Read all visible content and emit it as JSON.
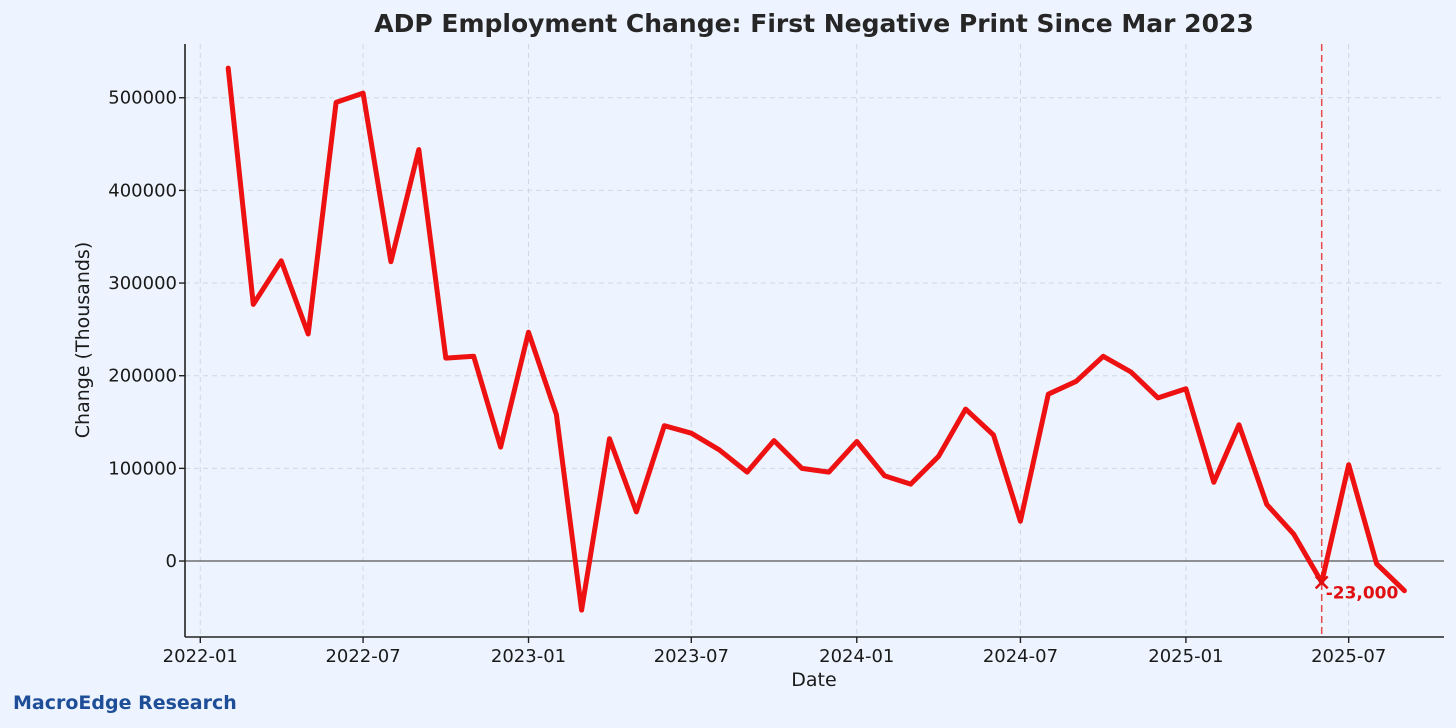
{
  "brand": "MacroEdge Research",
  "colors": {
    "background": "#edf4ff",
    "line": "#ee1111",
    "grid": "#c9d3e3",
    "annotation": "#e01010"
  },
  "chart_data": {
    "type": "line",
    "title": "ADP Employment Change: First Negative Print Since Mar 2023",
    "xlabel": "Date",
    "ylabel": "Change (Thousands)",
    "x_ticks": [
      "2022-01",
      "2022-07",
      "2023-01",
      "2023-07",
      "2024-01",
      "2024-07",
      "2025-01",
      "2025-07"
    ],
    "y_ticks": [
      0,
      100000,
      200000,
      300000,
      400000,
      500000
    ],
    "xlim": [
      "2021-12-15",
      "2025-10-15"
    ],
    "ylim": [
      -82000,
      558000
    ],
    "grid": true,
    "zero_line": true,
    "series": [
      {
        "x": [
          "2022-02",
          "2022-03",
          "2022-04",
          "2022-05",
          "2022-06",
          "2022-07",
          "2022-08",
          "2022-09",
          "2022-10",
          "2022-11",
          "2022-12",
          "2023-01",
          "2023-02",
          "2023-03",
          "2023-04",
          "2023-05",
          "2023-06",
          "2023-07",
          "2023-08",
          "2023-09",
          "2023-10",
          "2023-11",
          "2023-12",
          "2024-01",
          "2024-02",
          "2024-03",
          "2024-04",
          "2024-05",
          "2024-06",
          "2024-07",
          "2024-08",
          "2024-09",
          "2024-10",
          "2024-11",
          "2024-12",
          "2025-01",
          "2025-02",
          "2025-03",
          "2025-04",
          "2025-05",
          "2025-06",
          "2025-07",
          "2025-08",
          "2025-09"
        ],
        "values": [
          532000,
          277000,
          324000,
          245000,
          495000,
          505000,
          323000,
          444000,
          219000,
          221000,
          123000,
          247000,
          158000,
          -53000,
          132000,
          53000,
          146000,
          138000,
          120000,
          96000,
          130000,
          100000,
          96000,
          129000,
          92000,
          83000,
          113000,
          164000,
          136000,
          43000,
          180000,
          194000,
          221000,
          204000,
          176000,
          186000,
          85000,
          147000,
          61000,
          29000,
          -23000,
          104000,
          -3000,
          -32000
        ]
      }
    ],
    "highlight": {
      "x": "2025-06",
      "value": -23000,
      "label": "-23,000"
    }
  }
}
